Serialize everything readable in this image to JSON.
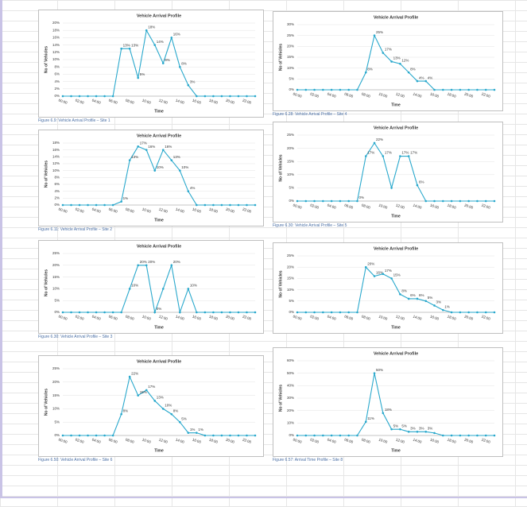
{
  "chart_data": [
    {
      "type": "line",
      "title": "Vehicle Arrival Profile",
      "x_label": "Time",
      "y_label": "No of Vehicles",
      "caption": "Figure 6.9: Vehicle Arrival Profile – Site 1",
      "color": "#29a8cc",
      "categories": [
        "00:00",
        null,
        "02:00",
        null,
        "04:00",
        null,
        "06:00",
        null,
        "08:00",
        null,
        "10:00",
        null,
        "12:00",
        null,
        "14:00",
        null,
        "16:00",
        null,
        "18:00",
        null,
        "20:00",
        null,
        "22:00",
        null
      ],
      "values": [
        0,
        0,
        0,
        0,
        0,
        0,
        0,
        13,
        13,
        5,
        18,
        14,
        9,
        16,
        8,
        3,
        0,
        0,
        0,
        0,
        0,
        0,
        0,
        0
      ],
      "value_labels": [
        null,
        null,
        null,
        null,
        null,
        null,
        null,
        "13%",
        "13%",
        "5%",
        "18%",
        "14%",
        "9%",
        "16%",
        "8%",
        "3%",
        null,
        null,
        null,
        null,
        null,
        null,
        null,
        null
      ],
      "ylim": [
        0,
        20
      ],
      "yticks": [
        {
          "value": 0,
          "label": "0%"
        },
        {
          "value": 2,
          "label": "2%"
        },
        {
          "value": 4,
          "label": "4%"
        },
        {
          "value": 6,
          "label": "6%"
        },
        {
          "value": 8,
          "label": "8%"
        },
        {
          "value": 10,
          "label": "10%"
        },
        {
          "value": 12,
          "label": "12%"
        },
        {
          "value": 14,
          "label": "14%"
        },
        {
          "value": 16,
          "label": "16%"
        },
        {
          "value": 18,
          "label": "18%"
        },
        {
          "value": 20,
          "label": "20%"
        }
      ]
    },
    {
      "type": "line",
      "title": "Vehicle Arrival Profile",
      "x_label": "Time",
      "y_label": "No of Vehicles",
      "caption": "Figure 6.28: Vehicle Arrival Profile – Site 4",
      "color": "#29a8cc",
      "categories": [
        "00:00",
        null,
        "02:00",
        null,
        "04:00",
        null,
        "06:00",
        null,
        "08:00",
        null,
        "10:00",
        null,
        "12:00",
        null,
        "14:00",
        null,
        "16:00",
        null,
        "18:00",
        null,
        "20:00",
        null,
        "22:00",
        null
      ],
      "values": [
        0,
        0,
        0,
        0,
        0,
        0,
        0,
        0,
        8,
        25,
        17,
        13,
        12,
        8,
        4,
        4,
        0,
        0,
        0,
        0,
        0,
        0,
        0,
        0
      ],
      "value_labels": [
        null,
        null,
        null,
        null,
        null,
        null,
        null,
        null,
        "8%",
        "25%",
        "17%",
        "13%",
        "12%",
        "8%",
        "4%",
        "4%",
        null,
        null,
        null,
        null,
        null,
        null,
        null,
        null
      ],
      "ylim": [
        0,
        30
      ],
      "yticks": [
        {
          "value": 0,
          "label": "0%"
        },
        {
          "value": 5,
          "label": "5%"
        },
        {
          "value": 10,
          "label": "10%"
        },
        {
          "value": 15,
          "label": "15%"
        },
        {
          "value": 20,
          "label": "20%"
        },
        {
          "value": 25,
          "label": "25%"
        },
        {
          "value": 30,
          "label": "30%"
        }
      ]
    },
    {
      "type": "line",
      "title": "Vehicle Arrival Profile",
      "x_label": "Time",
      "y_label": "No of Vehicles",
      "caption": "Figure 6.11: Vehicle Arrival Profile – Site 2",
      "color": "#29a8cc",
      "categories": [
        "00:00",
        null,
        "02:00",
        null,
        "04:00",
        null,
        "06:00",
        null,
        "08:00",
        null,
        "10:00",
        null,
        "12:00",
        null,
        "14:00",
        null,
        "16:00",
        null,
        "18:00",
        null,
        "20:00",
        null,
        "22:00",
        null
      ],
      "values": [
        0,
        0,
        0,
        0,
        0,
        0,
        0,
        1,
        13,
        17,
        16,
        10,
        16,
        13,
        10,
        4,
        0,
        0,
        0,
        0,
        0,
        0,
        0,
        0
      ],
      "value_labels": [
        null,
        null,
        null,
        null,
        null,
        null,
        null,
        "1%",
        "13%",
        "17%",
        "16%",
        "10%",
        "16%",
        "13%",
        "10%",
        "4%",
        null,
        null,
        null,
        null,
        null,
        null,
        null,
        null
      ],
      "ylim": [
        0,
        18
      ],
      "yticks": [
        {
          "value": 0,
          "label": "0%"
        },
        {
          "value": 2,
          "label": "2%"
        },
        {
          "value": 4,
          "label": "4%"
        },
        {
          "value": 6,
          "label": "6%"
        },
        {
          "value": 8,
          "label": "8%"
        },
        {
          "value": 10,
          "label": "10%"
        },
        {
          "value": 12,
          "label": "12%"
        },
        {
          "value": 14,
          "label": "14%"
        },
        {
          "value": 16,
          "label": "16%"
        },
        {
          "value": 18,
          "label": "18%"
        }
      ]
    },
    {
      "type": "line",
      "title": "Vehicle Arrival Profile",
      "x_label": "Time",
      "y_label": "No of Vehicles",
      "caption": "Figure 6.30: Vehicle Arrival Profile – Site 5",
      "color": "#29a8cc",
      "categories": [
        "00:00",
        null,
        "02:00",
        null,
        "04:00",
        null,
        "06:00",
        null,
        "08:00",
        null,
        "10:00",
        null,
        "12:00",
        null,
        "14:00",
        null,
        "16:00",
        null,
        "18:00",
        null,
        "20:00",
        null,
        "22:00",
        null
      ],
      "values": [
        0,
        0,
        0,
        0,
        0,
        0,
        0,
        0,
        17,
        22,
        17,
        5,
        17,
        17,
        6,
        0,
        0,
        0,
        0,
        0,
        0,
        0,
        0,
        0
      ],
      "value_labels": [
        null,
        null,
        null,
        null,
        null,
        null,
        null,
        "0%",
        "17%",
        "22%",
        "17%",
        null,
        "17%",
        "17%",
        "6%",
        null,
        null,
        null,
        null,
        null,
        null,
        null,
        null,
        null
      ],
      "ylim": [
        0,
        25
      ],
      "yticks": [
        {
          "value": 0,
          "label": "0%"
        },
        {
          "value": 5,
          "label": "5%"
        },
        {
          "value": 10,
          "label": "10%"
        },
        {
          "value": 15,
          "label": "15%"
        },
        {
          "value": 20,
          "label": "20%"
        },
        {
          "value": 25,
          "label": "25%"
        }
      ]
    },
    {
      "type": "line",
      "title": "Vehicle Arrival Profile",
      "x_label": "Time",
      "y_label": "No of Vehicles",
      "caption": "Figure 6.30: Vehicle Arrival Profile – Site 3",
      "color": "#29a8cc",
      "categories": [
        "00:00",
        null,
        "02:00",
        null,
        "04:00",
        null,
        "06:00",
        null,
        "08:00",
        null,
        "10:00",
        null,
        "12:00",
        null,
        "14:00",
        null,
        "16:00",
        null,
        "18:00",
        null,
        "20:00",
        null,
        "22:00",
        null
      ],
      "values": [
        0,
        0,
        0,
        0,
        0,
        0,
        0,
        0,
        10,
        20,
        20,
        0,
        10,
        20,
        0,
        10,
        0,
        0,
        0,
        0,
        0,
        0,
        0,
        0
      ],
      "value_labels": [
        null,
        null,
        null,
        null,
        null,
        null,
        null,
        null,
        "10%",
        "20%",
        "20%",
        "0%",
        null,
        "20%",
        null,
        "10%",
        null,
        null,
        null,
        null,
        null,
        null,
        null,
        null
      ],
      "ylim": [
        0,
        25
      ],
      "yticks": [
        {
          "value": 0,
          "label": "0%"
        },
        {
          "value": 5,
          "label": "5%"
        },
        {
          "value": 10,
          "label": "10%"
        },
        {
          "value": 15,
          "label": "15%"
        },
        {
          "value": 20,
          "label": "20%"
        },
        {
          "value": 25,
          "label": "25%"
        }
      ]
    },
    {
      "type": "line",
      "title": "Vehicle Arrival Profile",
      "x_label": "Time",
      "y_label": "No of Vehicles",
      "color": "#29a8cc",
      "categories": [
        "00:00",
        null,
        "02:00",
        null,
        "04:00",
        null,
        "06:00",
        null,
        "08:00",
        null,
        "10:00",
        null,
        "12:00",
        null,
        "14:00",
        null,
        "16:00",
        null,
        "18:00",
        null,
        "20:00",
        null,
        "22:00",
        null
      ],
      "values": [
        0,
        0,
        0,
        0,
        0,
        0,
        0,
        0,
        20,
        16,
        17,
        15,
        8,
        6,
        6,
        5,
        3,
        1,
        0,
        0,
        0,
        0,
        0,
        0
      ],
      "value_labels": [
        null,
        null,
        null,
        null,
        null,
        null,
        null,
        null,
        "20%",
        "16%",
        "17%",
        "15%",
        "8%",
        "6%",
        "6%",
        "5%",
        "3%",
        "1%",
        null,
        null,
        null,
        null,
        null,
        null
      ],
      "ylim": [
        0,
        25
      ],
      "yticks": [
        {
          "value": 0,
          "label": "0%"
        },
        {
          "value": 5,
          "label": "5%"
        },
        {
          "value": 10,
          "label": "10%"
        },
        {
          "value": 15,
          "label": "15%"
        },
        {
          "value": 20,
          "label": "20%"
        },
        {
          "value": 25,
          "label": "25%"
        }
      ]
    },
    {
      "type": "line",
      "title": "Vehicle Arrival Profile",
      "x_label": "Time",
      "y_label": "No of Vehicles",
      "caption": "Figure 6.50: Vehicle Arrival Profile – Site 6",
      "color": "#29a8cc",
      "categories": [
        "00:00",
        null,
        "02:00",
        null,
        "04:00",
        null,
        "06:00",
        null,
        "08:00",
        null,
        "10:00",
        null,
        "12:00",
        null,
        "14:00",
        null,
        "16:00",
        null,
        "18:00",
        null,
        "20:00",
        null,
        "22:00",
        null
      ],
      "values": [
        0,
        0,
        0,
        0,
        0,
        0,
        0,
        8,
        22,
        15,
        17,
        13,
        10,
        8,
        5,
        1,
        1,
        0,
        0,
        0,
        0,
        0,
        0,
        0
      ],
      "value_labels": [
        null,
        null,
        null,
        null,
        null,
        null,
        null,
        "8%",
        "22%",
        "15%",
        "17%",
        "13%",
        "10%",
        "8%",
        "5%",
        "1%",
        "1%",
        null,
        null,
        null,
        null,
        null,
        null,
        null
      ],
      "ylim": [
        0,
        25
      ],
      "yticks": [
        {
          "value": 0,
          "label": "0%"
        },
        {
          "value": 5,
          "label": "5%"
        },
        {
          "value": 10,
          "label": "10%"
        },
        {
          "value": 15,
          "label": "15%"
        },
        {
          "value": 20,
          "label": "20%"
        },
        {
          "value": 25,
          "label": "25%"
        }
      ]
    },
    {
      "type": "line",
      "title": "Vehicle Arrival Profile",
      "x_label": "Time",
      "y_label": "No of Vehicles",
      "caption": "Figure 6.57: Arrival Time Profile – Site 8",
      "color": "#29a8cc",
      "categories": [
        "00:00",
        null,
        "02:00",
        null,
        "04:00",
        null,
        "06:00",
        null,
        "08:00",
        null,
        "10:00",
        null,
        "12:00",
        null,
        "14:00",
        null,
        "16:00",
        null,
        "18:00",
        null,
        "20:00",
        null,
        "22:00",
        null
      ],
      "values": [
        0,
        0,
        0,
        0,
        0,
        0,
        0,
        0,
        11,
        50,
        18,
        5,
        5,
        3,
        3,
        3,
        2,
        0,
        0,
        0,
        0,
        0,
        0,
        0
      ],
      "value_labels": [
        null,
        null,
        null,
        null,
        null,
        null,
        null,
        null,
        "11%",
        "50%",
        "18%",
        "5%",
        "5%",
        "3%",
        "3%",
        "3%",
        null,
        null,
        null,
        null,
        null,
        null,
        null,
        null
      ],
      "ylim": [
        0,
        60
      ],
      "yticks": [
        {
          "value": 0,
          "label": "0%"
        },
        {
          "value": 10,
          "label": "10%"
        },
        {
          "value": 20,
          "label": "20%"
        },
        {
          "value": 30,
          "label": "30%"
        },
        {
          "value": 40,
          "label": "40%"
        },
        {
          "value": 50,
          "label": "50%"
        },
        {
          "value": 60,
          "label": "60%"
        }
      ]
    }
  ]
}
